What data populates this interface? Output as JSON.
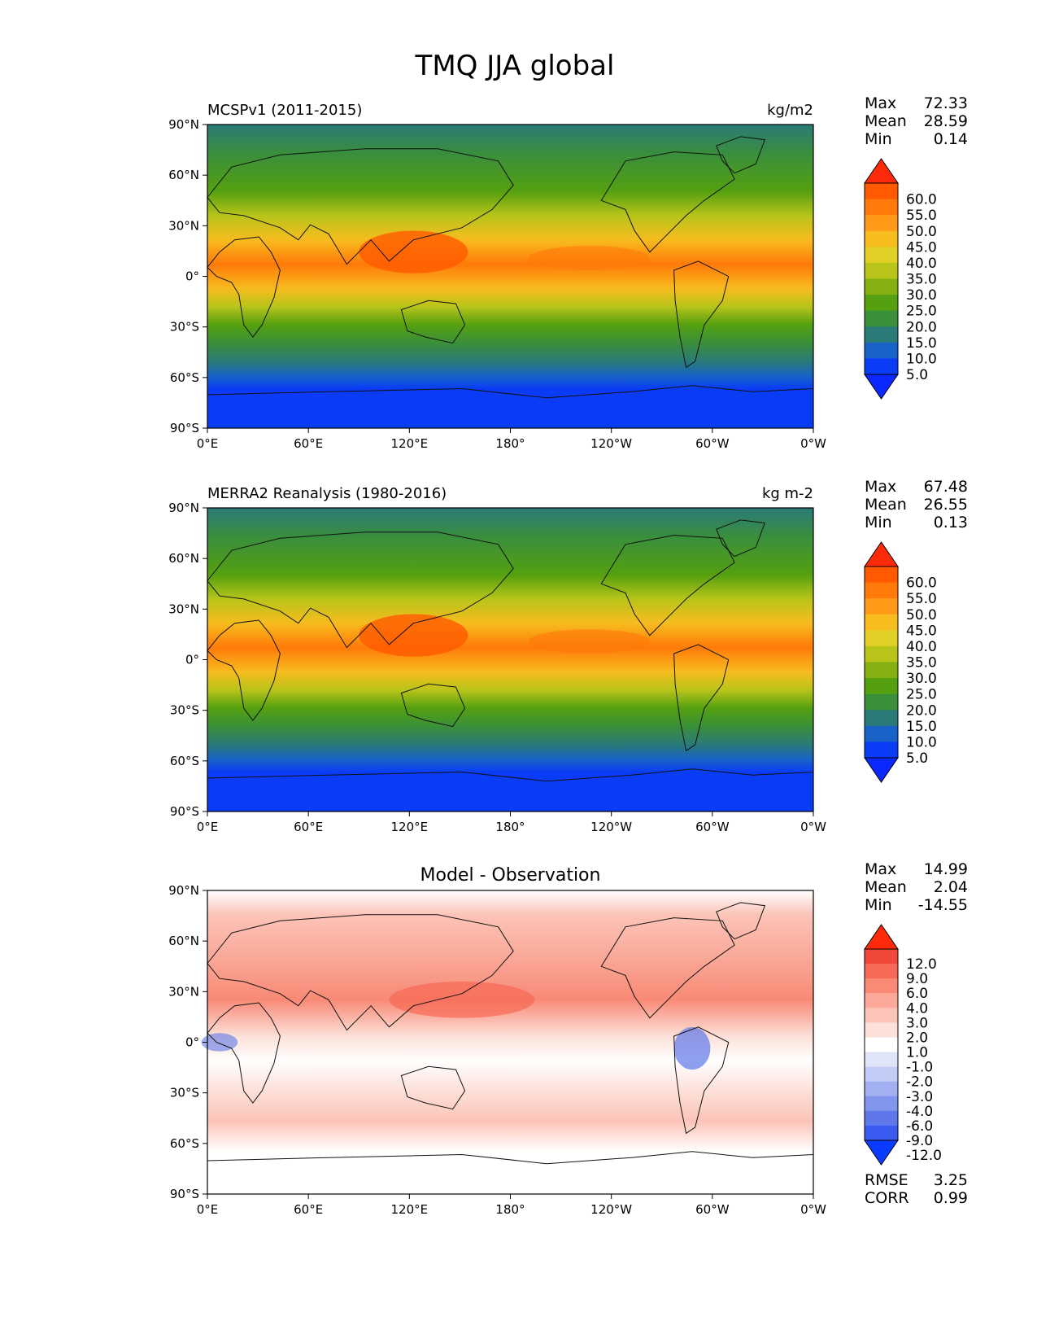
{
  "title": "TMQ JJA global",
  "panels": [
    {
      "left_title": "MCSPv1 (2011-2015)",
      "right_title": "kg/m2",
      "center_title": "",
      "stats": [
        [
          "Max",
          "72.33"
        ],
        [
          "Mean",
          "28.59"
        ],
        [
          "Min",
          "0.14"
        ]
      ],
      "colorbar": {
        "labels": [
          "60.0",
          "55.0",
          "50.0",
          "45.0",
          "40.0",
          "35.0",
          "30.0",
          "25.0",
          "20.0",
          "15.0",
          "10.0",
          "5.0"
        ],
        "colors": [
          "#ff2a0a",
          "#ff5a00",
          "#ff7a0a",
          "#ff9a18",
          "#f7bc1e",
          "#e2cf26",
          "#b8c41a",
          "#84b012",
          "#55a010",
          "#3a8f3a",
          "#2a7a78",
          "#1862c8",
          "#0a3cf5",
          "#0a28ff"
        ]
      },
      "footer_stats": []
    },
    {
      "left_title": "MERRA2 Reanalysis (1980-2016)",
      "right_title": "kg m-2",
      "center_title": "",
      "stats": [
        [
          "Max",
          "67.48"
        ],
        [
          "Mean",
          "26.55"
        ],
        [
          "Min",
          "0.13"
        ]
      ],
      "colorbar": {
        "labels": [
          "60.0",
          "55.0",
          "50.0",
          "45.0",
          "40.0",
          "35.0",
          "30.0",
          "25.0",
          "20.0",
          "15.0",
          "10.0",
          "5.0"
        ],
        "colors": [
          "#ff2a0a",
          "#ff5a00",
          "#ff7a0a",
          "#ff9a18",
          "#f7bc1e",
          "#e2cf26",
          "#b8c41a",
          "#84b012",
          "#55a010",
          "#3a8f3a",
          "#2a7a78",
          "#1862c8",
          "#0a3cf5",
          "#0a28ff"
        ]
      },
      "footer_stats": []
    },
    {
      "left_title": "",
      "right_title": "",
      "center_title": "Model - Observation",
      "stats": [
        [
          "Max",
          "14.99"
        ],
        [
          "Mean",
          "2.04"
        ],
        [
          "Min",
          "-14.55"
        ]
      ],
      "colorbar": {
        "labels": [
          "12.0",
          "9.0",
          "6.0",
          "4.0",
          "3.0",
          "2.0",
          "1.0",
          "-1.0",
          "-2.0",
          "-3.0",
          "-4.0",
          "-6.0",
          "-9.0",
          "-12.0"
        ],
        "colors": [
          "#ff2a0a",
          "#f2483a",
          "#f66a56",
          "#f88a76",
          "#faa898",
          "#fcc4b8",
          "#fde0d8",
          "#ffffff",
          "#dfe4f8",
          "#c2ccf6",
          "#a2b0f2",
          "#8296ee",
          "#5e78ea",
          "#3a5af0",
          "#0a3cff"
        ]
      },
      "footer_stats": [
        [
          "RMSE",
          "3.25"
        ],
        [
          "CORR",
          "0.99"
        ]
      ]
    }
  ],
  "axes": {
    "x_ticks": [
      "0°E",
      "60°E",
      "120°E",
      "180°",
      "120°W",
      "60°W",
      "0°W"
    ],
    "y_ticks": [
      "90°N",
      "60°N",
      "30°N",
      "0°",
      "30°S",
      "60°S",
      "90°S"
    ]
  }
}
